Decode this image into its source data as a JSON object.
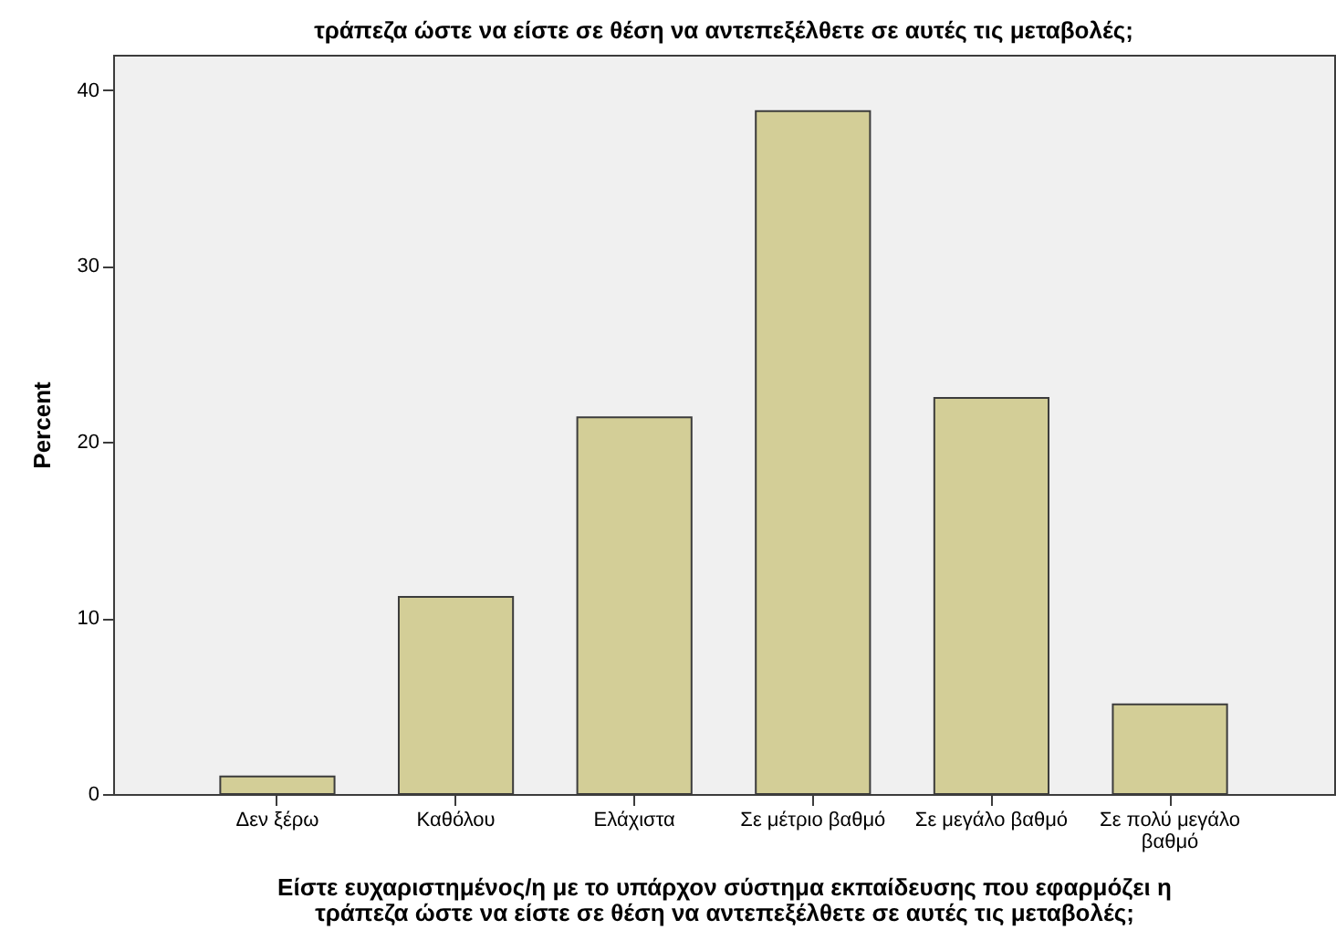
{
  "chart_data": {
    "type": "bar",
    "title": "τράπεζα ώστε να είστε σε θέση να αντεπεξέλθετε σε αυτές τις μεταβολές;",
    "xlabel": "Είστε ευχαριστημένος/η με το υπάρχον σύστημα εκπαίδευσης που εφαρμόζει η τράπεζα ώστε να είστε σε θέση να αντεπεξέλθετε σε αυτές τις μεταβολές;",
    "ylabel": "Percent",
    "categories": [
      "Δεν ξέρω",
      "Καθόλου",
      "Ελάχιστα",
      "Σε μέτριο βαθμό",
      "Σε μεγάλο βαθμό",
      "Σε πολύ μεγάλο βαθμό"
    ],
    "values": [
      1.0,
      11.2,
      21.4,
      38.8,
      22.5,
      5.1
    ],
    "color": "#d3ce97",
    "ylim": [
      0,
      42
    ],
    "yticks": [
      0,
      10,
      20,
      30,
      40
    ],
    "grid": false
  }
}
